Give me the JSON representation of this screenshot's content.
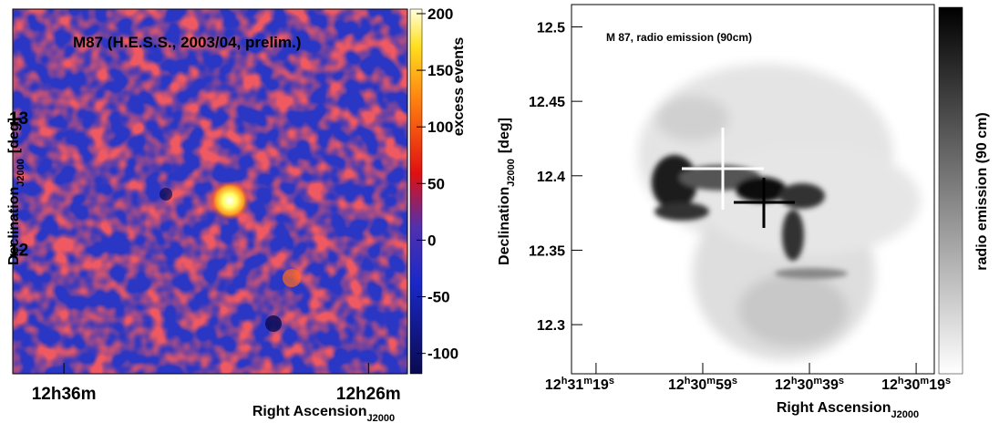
{
  "chart_data": [
    {
      "type": "heatmap",
      "title": "M87 (H.E.S.S., 2003/04, prelim.)",
      "xlabel": "Right Ascension",
      "xlabel_sub": "J2000",
      "ylabel": "Declination",
      "ylabel_sub": "J2000",
      "ylabel_unit": "[deg]",
      "zlabel": "excess events",
      "xlim": [
        12.628,
        12.412
      ],
      "xticks": [
        {
          "value": 12.6,
          "label": "12h36m"
        },
        {
          "value": 12.4333,
          "label": "12h26m"
        }
      ],
      "ylim": [
        11.06,
        13.83
      ],
      "yticks": [
        12,
        13
      ],
      "zlim": [
        -118,
        204
      ],
      "zticks": [
        -100,
        -50,
        0,
        50,
        100,
        150,
        200
      ],
      "grid": false
    },
    {
      "type": "image",
      "title": "M 87, radio emission (90cm)",
      "xlabel": "Right Ascension",
      "xlabel_sub": "J2000",
      "ylabel": "Declination",
      "ylabel_sub": "J2000",
      "ylabel_unit": "[deg]",
      "zlabel": "radio emission (90 cm)",
      "xlim": [
        45083.6,
        45015.6
      ],
      "xticks": [
        {
          "value": 45079,
          "label": "12h31m19s"
        },
        {
          "value": 45059,
          "label": "12h30m59s"
        },
        {
          "value": 45039,
          "label": "12h30m39s"
        },
        {
          "value": 45019,
          "label": "12h30m19s"
        }
      ],
      "ylim": [
        12.267,
        12.515
      ],
      "yticks": [
        12.3,
        12.35,
        12.4,
        12.45,
        12.5
      ],
      "grid": false
    }
  ]
}
